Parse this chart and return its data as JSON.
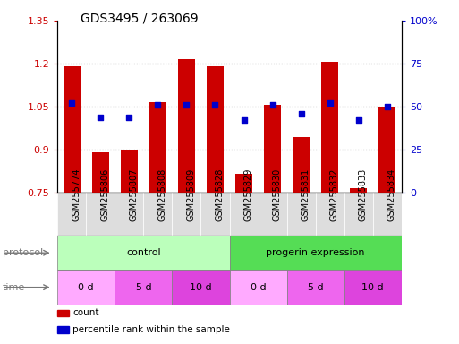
{
  "title": "GDS3495 / 263069",
  "samples": [
    "GSM255774",
    "GSM255806",
    "GSM255807",
    "GSM255808",
    "GSM255809",
    "GSM255828",
    "GSM255829",
    "GSM255830",
    "GSM255831",
    "GSM255832",
    "GSM255833",
    "GSM255834"
  ],
  "bar_values": [
    1.19,
    0.89,
    0.9,
    1.065,
    1.215,
    1.19,
    0.815,
    1.055,
    0.945,
    1.205,
    0.765,
    1.05
  ],
  "dot_values": [
    52,
    44,
    44,
    51,
    51,
    51,
    42,
    51,
    46,
    52,
    42,
    50
  ],
  "ylim_left": [
    0.75,
    1.35
  ],
  "ylim_right": [
    0,
    100
  ],
  "yticks_left": [
    0.75,
    0.9,
    1.05,
    1.2,
    1.35
  ],
  "yticks_right": [
    0,
    25,
    50,
    75,
    100
  ],
  "ytick_labels_left": [
    "0.75",
    "0.9",
    "1.05",
    "1.2",
    "1.35"
  ],
  "ytick_labels_right": [
    "0",
    "25",
    "50",
    "75",
    "100%"
  ],
  "bar_color": "#cc0000",
  "dot_color": "#0000cc",
  "protocol_groups": [
    {
      "label": "control",
      "start": 0,
      "end": 6,
      "color": "#bbffbb"
    },
    {
      "label": "progerin expression",
      "start": 6,
      "end": 12,
      "color": "#55dd55"
    }
  ],
  "time_groups": [
    {
      "label": "0 d",
      "start": 0,
      "end": 2,
      "color": "#ffaaff"
    },
    {
      "label": "5 d",
      "start": 2,
      "end": 4,
      "color": "#ee66ee"
    },
    {
      "label": "10 d",
      "start": 4,
      "end": 6,
      "color": "#dd44dd"
    },
    {
      "label": "0 d",
      "start": 6,
      "end": 8,
      "color": "#ffaaff"
    },
    {
      "label": "5 d",
      "start": 8,
      "end": 10,
      "color": "#ee66ee"
    },
    {
      "label": "10 d",
      "start": 10,
      "end": 12,
      "color": "#dd44dd"
    }
  ],
  "legend_items": [
    {
      "label": "count",
      "color": "#cc0000"
    },
    {
      "label": "percentile rank within the sample",
      "color": "#0000cc"
    }
  ],
  "hgrid_values": [
    0.9,
    1.05,
    1.2
  ],
  "bar_width": 0.6,
  "bar_color_red": "#cc0000",
  "dot_color_blue": "#0000cc",
  "bg_color": "#ffffff",
  "plot_bg": "#ffffff",
  "xtick_bg": "#dddddd",
  "label_color": "#777777"
}
